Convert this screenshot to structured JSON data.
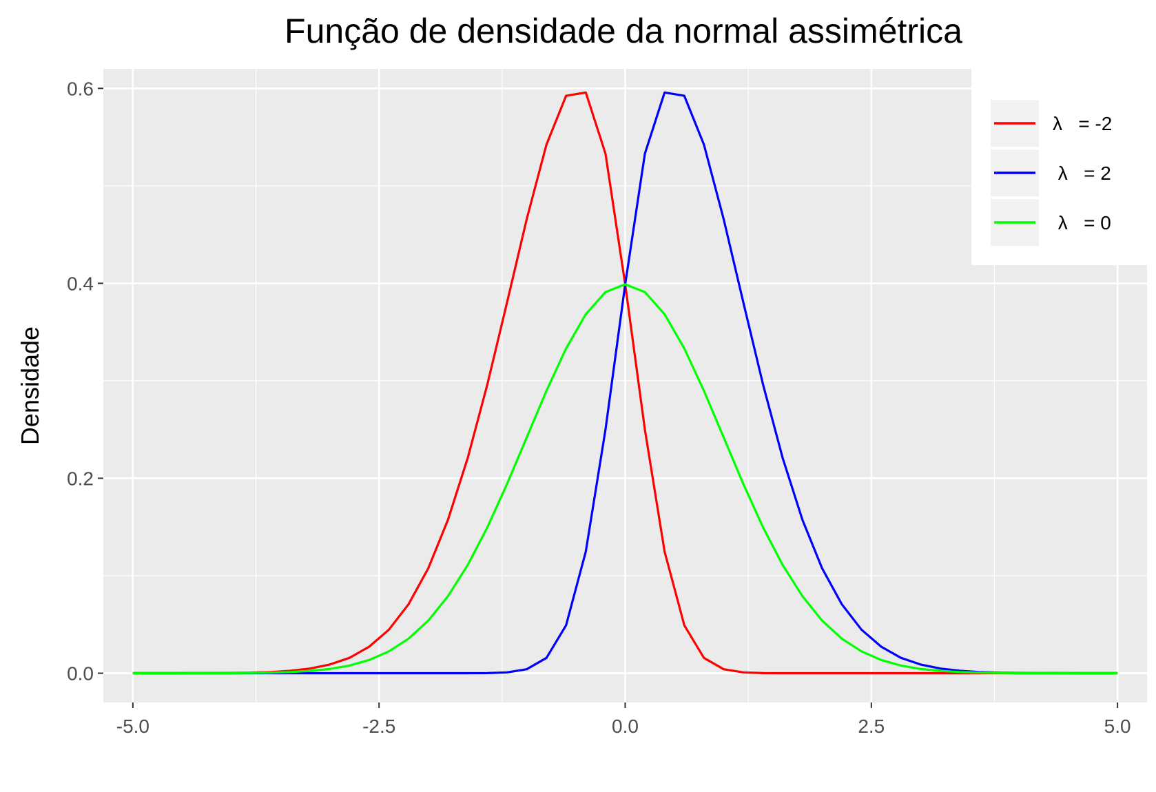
{
  "chart_data": {
    "type": "line",
    "title": "Função de densidade da normal assimétrica",
    "xlabel": "",
    "ylabel": "Densidade",
    "xlim": [
      -5.3,
      5.3
    ],
    "ylim": [
      -0.03,
      0.62
    ],
    "x_ticks": [
      -5.0,
      -2.5,
      0.0,
      2.5,
      5.0
    ],
    "x_tick_labels": [
      "-5.0",
      "-2.5",
      "0.0",
      "2.5",
      "5.0"
    ],
    "y_ticks": [
      0.0,
      0.2,
      0.4,
      0.6
    ],
    "y_tick_labels": [
      "0.0",
      "0.2",
      "0.4",
      "0.6"
    ],
    "grid": true,
    "legend_position": "right",
    "x": [
      -5.0,
      -4.8,
      -4.6,
      -4.4,
      -4.2,
      -4.0,
      -3.8,
      -3.6,
      -3.4,
      -3.2,
      -3.0,
      -2.8,
      -2.6,
      -2.4,
      -2.2,
      -2.0,
      -1.8,
      -1.6,
      -1.4,
      -1.2,
      -1.0,
      -0.8,
      -0.6,
      -0.4,
      -0.2,
      0.0,
      0.2,
      0.4,
      0.6,
      0.8,
      1.0,
      1.2,
      1.4,
      1.6,
      1.8,
      2.0,
      2.2,
      2.4,
      2.6,
      2.8,
      3.0,
      3.2,
      3.4,
      3.6,
      3.8,
      4.0,
      4.2,
      4.4,
      4.6,
      4.8,
      5.0
    ],
    "series": [
      {
        "name": "λ = -2",
        "color": "#ff0000",
        "values": [
          0.0,
          0.0,
          0.0,
          0.0001,
          0.0001,
          0.0003,
          0.0006,
          0.0012,
          0.0025,
          0.0048,
          0.0089,
          0.0158,
          0.0272,
          0.0447,
          0.0708,
          0.1077,
          0.1573,
          0.2205,
          0.2962,
          0.3804,
          0.466,
          0.5423,
          0.5924,
          0.5958,
          0.533,
          0.3989,
          0.2499,
          0.1248,
          0.0492,
          0.0157,
          0.0041,
          0.0009,
          0.0001,
          0.0,
          0.0,
          0.0,
          0.0,
          0.0,
          0.0,
          0.0,
          0.0,
          0.0,
          0.0,
          0.0,
          0.0,
          0.0,
          0.0,
          0.0,
          0.0,
          0.0,
          0.0
        ]
      },
      {
        "name": "λ = 2",
        "color": "#0000ff",
        "values": [
          0.0,
          0.0,
          0.0,
          0.0,
          0.0,
          0.0,
          0.0,
          0.0,
          0.0,
          0.0,
          0.0,
          0.0,
          0.0,
          0.0,
          0.0,
          0.0,
          0.0,
          0.0,
          0.0001,
          0.0009,
          0.0041,
          0.0157,
          0.0492,
          0.1248,
          0.2499,
          0.3989,
          0.533,
          0.5958,
          0.5924,
          0.5423,
          0.466,
          0.3804,
          0.2962,
          0.2205,
          0.1573,
          0.1077,
          0.0708,
          0.0447,
          0.0272,
          0.0158,
          0.0089,
          0.0048,
          0.0025,
          0.0012,
          0.0006,
          0.0003,
          0.0001,
          0.0001,
          0.0,
          0.0,
          0.0
        ]
      },
      {
        "name": "λ = 0",
        "color": "#00ff00",
        "values": [
          0.0,
          0.0,
          0.0,
          0.0,
          0.0001,
          0.0001,
          0.0003,
          0.0006,
          0.0012,
          0.0024,
          0.0044,
          0.0079,
          0.0136,
          0.0224,
          0.0355,
          0.054,
          0.079,
          0.1109,
          0.1497,
          0.1942,
          0.242,
          0.2897,
          0.3332,
          0.3683,
          0.391,
          0.3989,
          0.391,
          0.3683,
          0.3332,
          0.2897,
          0.242,
          0.1942,
          0.1497,
          0.1109,
          0.079,
          0.054,
          0.0355,
          0.0224,
          0.0136,
          0.0079,
          0.0044,
          0.0024,
          0.0012,
          0.0006,
          0.0003,
          0.0001,
          0.0001,
          0.0,
          0.0,
          0.0,
          0.0
        ]
      }
    ],
    "legend": [
      {
        "label": "λ   = -2",
        "color": "#ff0000"
      },
      {
        "label": " λ   = 2",
        "color": "#0000ff"
      },
      {
        "label": " λ   = 0",
        "color": "#00ff00"
      }
    ],
    "panel_background": "#ebebeb"
  }
}
